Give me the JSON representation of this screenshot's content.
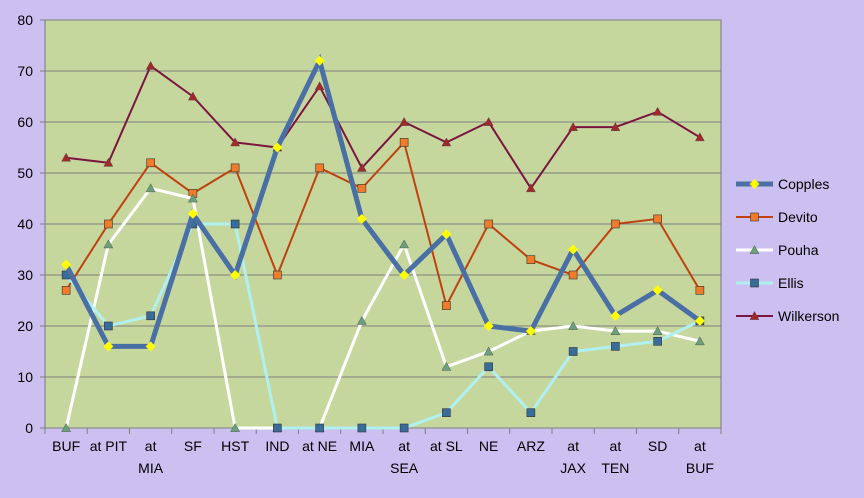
{
  "chart_data": {
    "type": "line",
    "ylim": [
      0,
      80
    ],
    "yticks": [
      0,
      10,
      20,
      30,
      40,
      50,
      60,
      70,
      80
    ],
    "grid": true,
    "legend": "right",
    "plot_background": "#c6d79e",
    "page_background": "#ccc0f0",
    "categories": [
      [
        "BUF"
      ],
      [
        "at PIT"
      ],
      [
        "at",
        "MIA"
      ],
      [
        "SF"
      ],
      [
        "HST"
      ],
      [
        "IND"
      ],
      [
        "at NE"
      ],
      [
        "MIA"
      ],
      [
        "at",
        "SEA"
      ],
      [
        "at SL"
      ],
      [
        "NE"
      ],
      [
        "ARZ"
      ],
      [
        "at",
        "JAX"
      ],
      [
        "at",
        "TEN"
      ],
      [
        "SD"
      ],
      [
        "at",
        "BUF"
      ]
    ],
    "series": [
      {
        "name": "Copples",
        "color": "#4a6fa5",
        "marker": "diamond",
        "marker_color": "#ffff00",
        "values": [
          32,
          16,
          16,
          42,
          30,
          55,
          72,
          41,
          30,
          38,
          20,
          19,
          35,
          22,
          27,
          21
        ]
      },
      {
        "name": "Devito",
        "color": "#c0410f",
        "marker": "square",
        "marker_color": "#f07c2a",
        "values": [
          27,
          40,
          52,
          46,
          51,
          30,
          51,
          47,
          56,
          24,
          40,
          33,
          30,
          40,
          41,
          27
        ]
      },
      {
        "name": "Pouha",
        "color": "#ffffff",
        "marker": "triangle",
        "marker_color": "#6aa07a",
        "values": [
          0,
          36,
          47,
          45,
          0,
          0,
          0,
          21,
          36,
          12,
          15,
          19,
          20,
          19,
          19,
          17
        ]
      },
      {
        "name": "Ellis",
        "color": "#b0f0f0",
        "marker": "square",
        "marker_color": "#3a6c9a",
        "values": [
          30,
          20,
          22,
          40,
          40,
          0,
          0,
          0,
          0,
          3,
          12,
          3,
          15,
          16,
          17,
          21
        ]
      },
      {
        "name": "Wilkerson",
        "color": "#7b1540",
        "marker": "triangle",
        "marker_color": "#a3282a",
        "values": [
          53,
          52,
          71,
          65,
          56,
          55,
          67,
          51,
          60,
          56,
          60,
          47,
          59,
          59,
          62,
          57
        ]
      }
    ]
  }
}
